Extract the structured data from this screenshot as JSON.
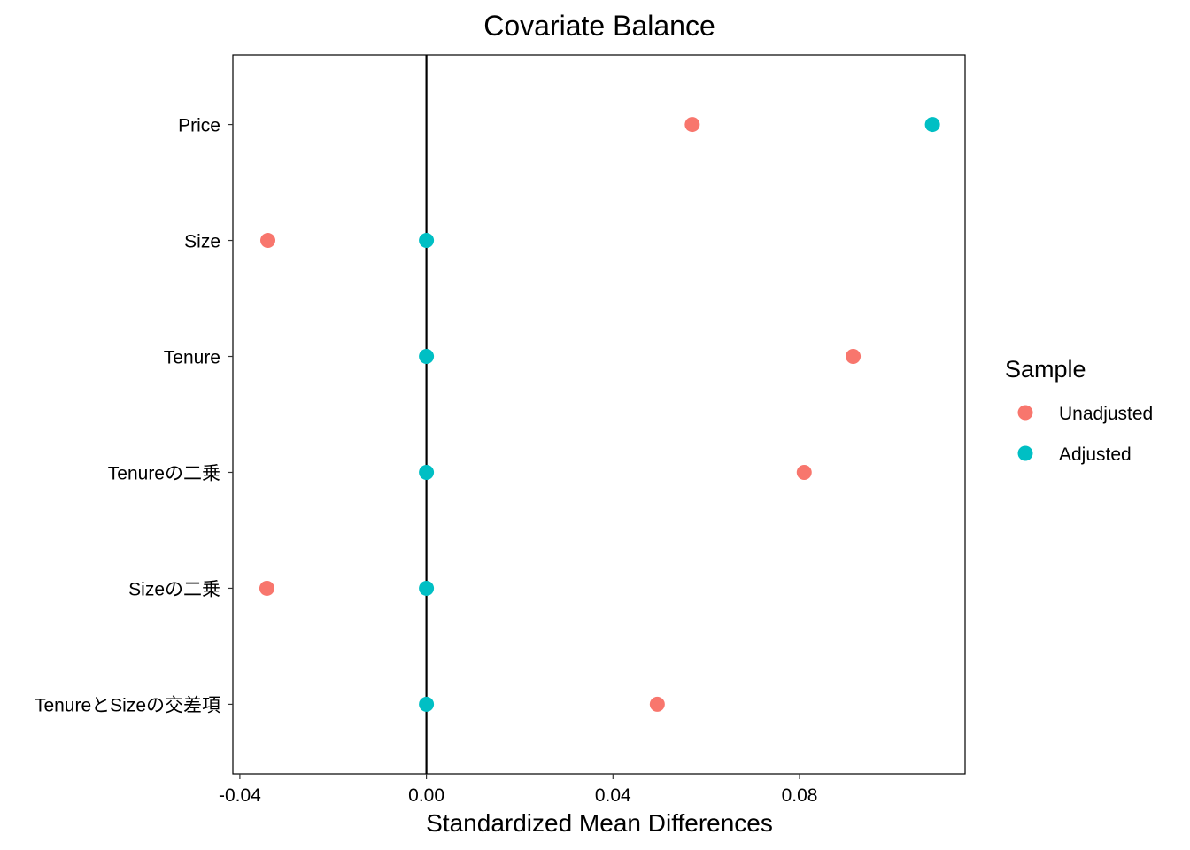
{
  "chart_data": {
    "type": "scatter",
    "title": "Covariate Balance",
    "xlabel": "Standardized Mean Differences",
    "ylabel": "",
    "xlim": [
      -0.0415,
      0.1155
    ],
    "x_ticks": [
      {
        "value": -0.04,
        "label": "-0.04"
      },
      {
        "value": 0.0,
        "label": "0.00"
      },
      {
        "value": 0.04,
        "label": "0.04"
      },
      {
        "value": 0.08,
        "label": "0.08"
      }
    ],
    "categories": [
      "Price",
      "Size",
      "Tenure",
      "Tenureの二乗",
      "Sizeの二乗",
      "TenureとSizeの交差項"
    ],
    "reference_line": 0,
    "grid": false,
    "legend": {
      "title": "Sample",
      "position": "right"
    },
    "series": [
      {
        "name": "Unadjusted",
        "color": "#F8766D",
        "values": [
          0.057,
          -0.034,
          0.0915,
          0.081,
          -0.0342,
          0.0495
        ]
      },
      {
        "name": "Adjusted",
        "color": "#00BFC4",
        "values": [
          0.1085,
          0.0,
          0.0,
          0.0,
          0.0,
          0.0
        ]
      }
    ]
  }
}
